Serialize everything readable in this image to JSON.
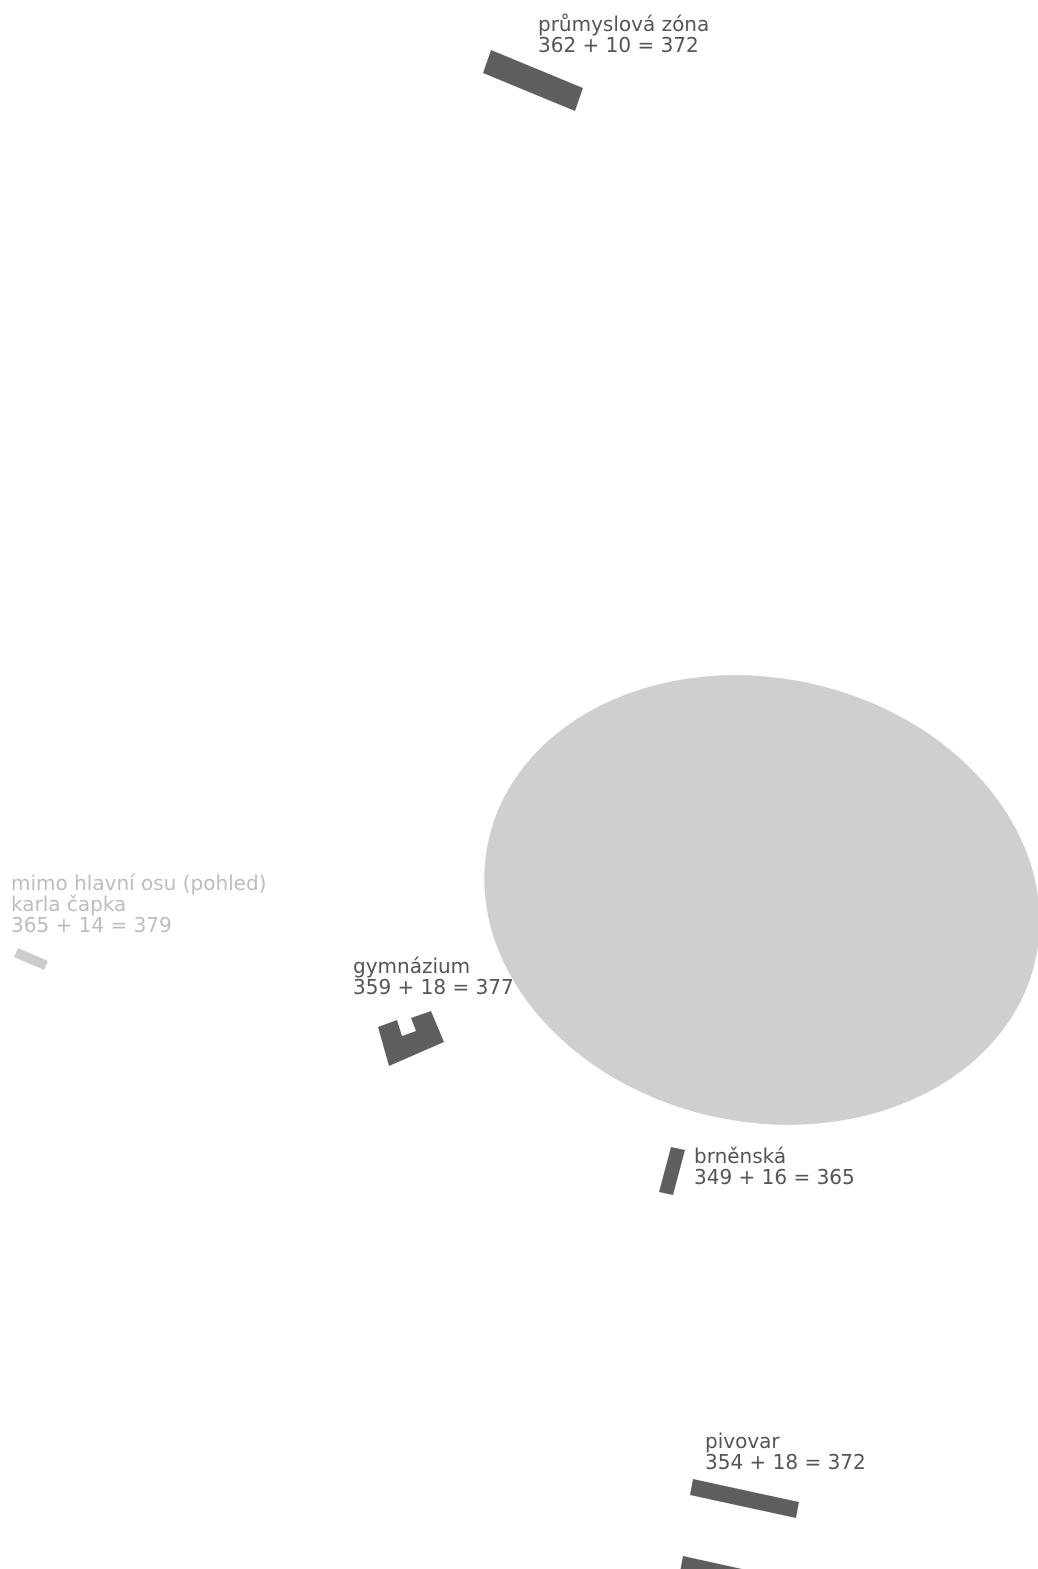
{
  "colors": {
    "building": "#5e5e5e",
    "building_excluded": "#cccccc",
    "area": "#cfcfcf",
    "text": "#555555",
    "text_excluded": "#bdbdbd"
  },
  "sites": {
    "prumyslova": {
      "name": "průmyslová zóna",
      "calc": "362 + 10 = 372"
    },
    "karla_capka": {
      "note": "mimo hlavní osu (pohled)",
      "name": "karla čapka",
      "calc": "365 + 14 = 379"
    },
    "gymnazium": {
      "name": "gymnázium",
      "calc": "359 + 18 = 377"
    },
    "brnenska": {
      "name": "brněnská",
      "calc": "349 + 16 = 365"
    },
    "pivovar": {
      "name": "pivovar",
      "calc": "354 + 18 = 372"
    }
  }
}
